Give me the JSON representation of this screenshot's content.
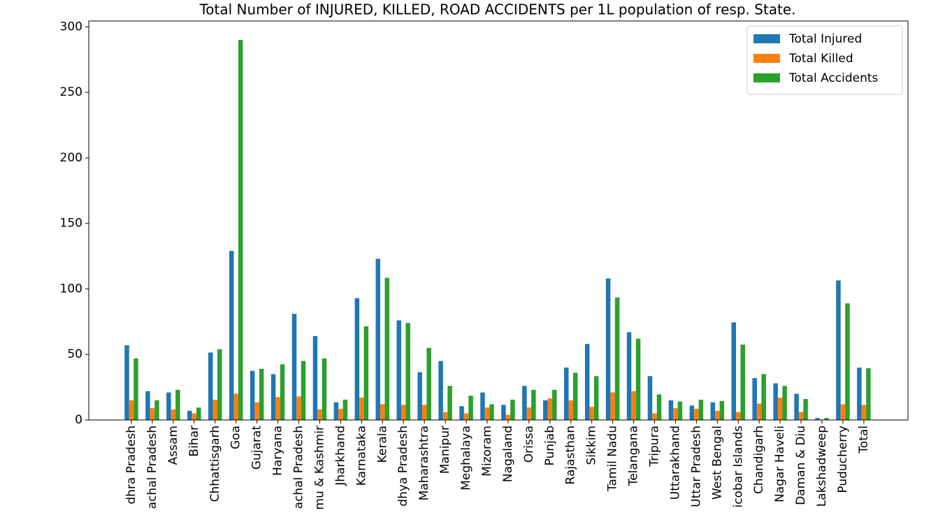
{
  "chart_data": {
    "type": "bar",
    "title": "Total Number of INJURED, KILLED, ROAD ACCIDENTS per 1L population of resp. State.",
    "categories": [
      "dhra Pradesh",
      "achal Pradesh",
      "Assam",
      "Bihar",
      "Chhattisgarh",
      "Goa",
      "Gujarat",
      "Haryana",
      "achal Pradesh",
      "mu & Kashmir",
      "Jharkhand",
      "Karnataka",
      "Kerala",
      "dhya Pradesh",
      "Maharashtra",
      "Manipur",
      "Meghalaya",
      "Mizoram",
      "Nagaland",
      "Orissa",
      "Punjab",
      "Rajasthan",
      "Sikkim",
      "Tamil Nadu",
      "Telangana",
      "Tripura",
      "Uttarakhand",
      "Uttar Pradesh",
      "West Bengal",
      "icobar Islands",
      "Chandigarh",
      "Nagar Haveli",
      "Daman & Diu",
      "Lakshadweep",
      "Puducherry",
      "Total"
    ],
    "series": [
      {
        "name": "Total Injured",
        "color": "#1f77b4",
        "values": [
          57,
          22,
          21,
          7,
          51.5,
          129,
          37.5,
          35,
          81,
          64,
          13.5,
          93,
          123,
          76,
          36.5,
          45,
          10.5,
          21,
          11.5,
          26,
          15,
          40,
          58,
          108,
          67,
          33.5,
          15,
          11,
          13.5,
          74.5,
          32,
          28,
          20,
          1.5,
          106.5,
          40
        ]
      },
      {
        "name": "Total Killed",
        "color": "#ff7f0e",
        "values": [
          15,
          9,
          8,
          5,
          15.5,
          20,
          13.5,
          17.5,
          18,
          8,
          8.5,
          17,
          12,
          11.5,
          11.5,
          6,
          5,
          9.5,
          4,
          9.5,
          16.5,
          15,
          10,
          21,
          22,
          5,
          9,
          8.5,
          7,
          6,
          12.5,
          17,
          6,
          0.3,
          12,
          11.5
        ]
      },
      {
        "name": "Total Accidents",
        "color": "#2ca02c",
        "values": [
          47,
          15,
          23,
          9.5,
          54,
          290,
          39,
          42.5,
          45,
          47,
          15.5,
          71.5,
          108.5,
          74,
          55,
          26,
          18.5,
          12,
          15.5,
          23,
          23,
          36,
          33.5,
          93.5,
          62,
          19.5,
          14,
          15.5,
          14.5,
          57.5,
          35,
          26,
          16,
          1.5,
          89,
          39.5
        ]
      }
    ],
    "ylim": [
      0,
      304.5
    ],
    "yticks": [
      0,
      50,
      100,
      150,
      200,
      250,
      300
    ],
    "grid": false,
    "legend": "upper right"
  }
}
